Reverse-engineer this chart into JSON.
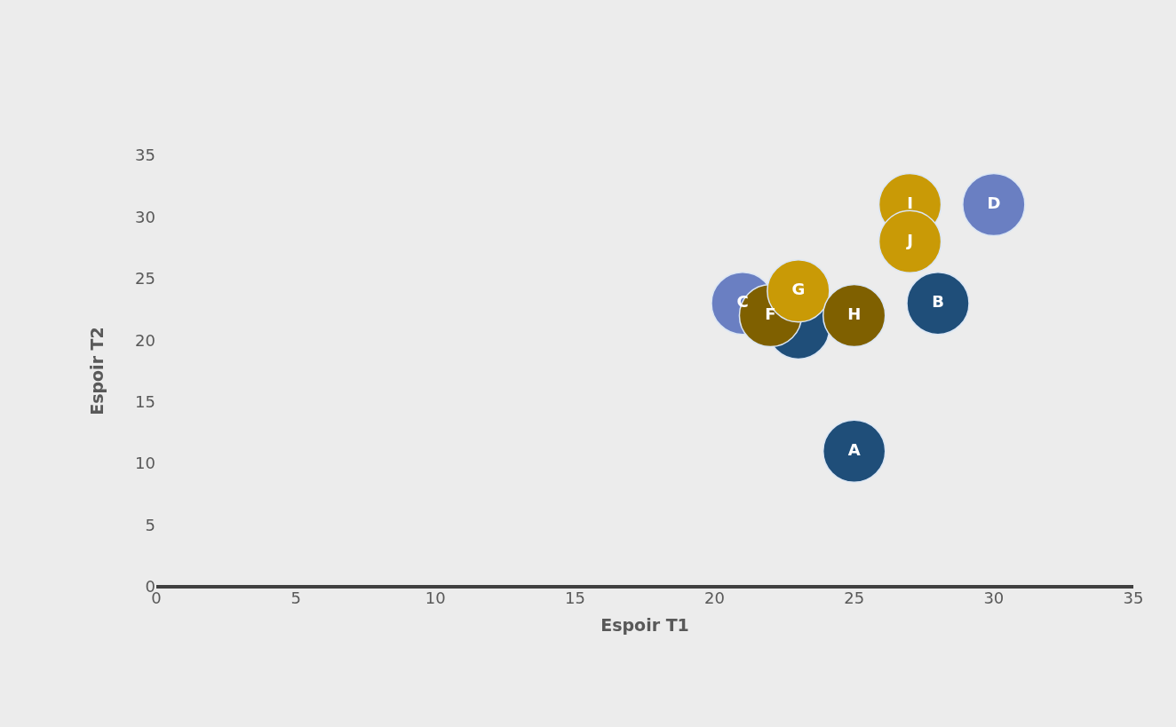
{
  "chart_data": {
    "type": "scatter",
    "xlabel": "Espoir T1",
    "ylabel": "Espoir T2",
    "x": [
      25,
      28,
      23,
      21,
      30,
      22,
      23,
      25,
      27,
      27
    ],
    "values": [
      11,
      23,
      21,
      23,
      31,
      22,
      24,
      22,
      31,
      28
    ],
    "colors": [
      "#1f4e79",
      "#1f4e79",
      "#1f4e79",
      "#6a7fc2",
      "#6a7fc2",
      "#7f6000",
      "#c99a06",
      "#7f6000",
      "#c99a06",
      "#c99a06"
    ],
    "value_labels": [
      "A",
      "B",
      null,
      "C",
      "D",
      "F",
      "G",
      "H",
      "I",
      "J"
    ],
    "xlim": [
      0,
      35
    ],
    "ylim": [
      0,
      35
    ],
    "xticks": [
      0,
      5,
      10,
      15,
      20,
      25,
      30,
      35
    ],
    "yticks": [
      0,
      5,
      10,
      15,
      20,
      25,
      30,
      35
    ],
    "marker": "circle",
    "grid": false
  }
}
